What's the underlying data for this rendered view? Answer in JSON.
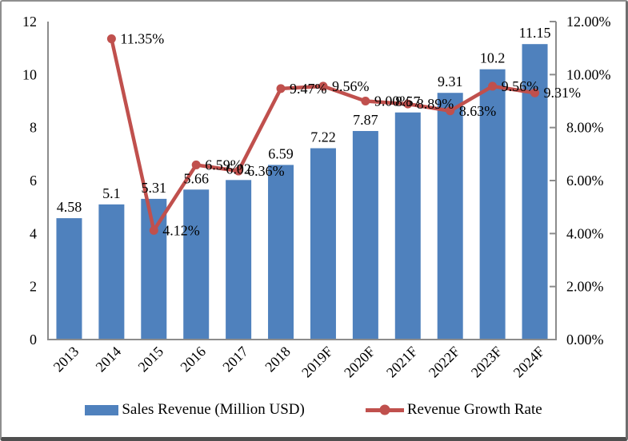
{
  "chart_data": {
    "type": "combo-bar-line",
    "title": "",
    "categories": [
      "2013",
      "2014",
      "2015",
      "2016",
      "2017",
      "2018",
      "2019F",
      "2020F",
      "2021F",
      "2022F",
      "2023F",
      "2024F"
    ],
    "series": [
      {
        "name": "Sales Revenue (Million USD)",
        "type": "bar",
        "axis": "left",
        "color": "#4f81bd",
        "values": [
          4.58,
          5.1,
          5.31,
          5.66,
          6.02,
          6.59,
          7.22,
          7.87,
          8.57,
          9.31,
          10.2,
          11.15
        ],
        "labels": [
          "4.58",
          "5.1",
          "5.31",
          "5.66",
          "6.02",
          "6.59",
          "7.22",
          "7.87",
          "8.57",
          "9.31",
          "10.2",
          "11.15"
        ]
      },
      {
        "name": "Revenue Growth Rate",
        "type": "line",
        "axis": "right",
        "color": "#c0504d",
        "values": [
          null,
          11.35,
          4.12,
          6.59,
          6.36,
          9.47,
          9.56,
          9.0,
          8.89,
          8.63,
          9.56,
          9.31
        ],
        "labels": [
          "",
          "11.35%",
          "4.12%",
          "6.59%",
          "6.36%",
          "9.47%",
          "9.56%",
          "9.00%",
          "8.89%",
          "8.63%",
          "9.56%",
          "9.31%"
        ]
      }
    ],
    "left_axis": {
      "min": 0,
      "max": 12,
      "ticks": [
        "0",
        "2",
        "4",
        "6",
        "8",
        "10",
        "12"
      ]
    },
    "right_axis": {
      "min": 0,
      "max": 12,
      "ticks": [
        "0.00%",
        "2.00%",
        "4.00%",
        "6.00%",
        "8.00%",
        "10.00%",
        "12.00%"
      ]
    },
    "grid": false,
    "legend_position": "bottom",
    "axis_line_color": "#8c8c8c"
  }
}
